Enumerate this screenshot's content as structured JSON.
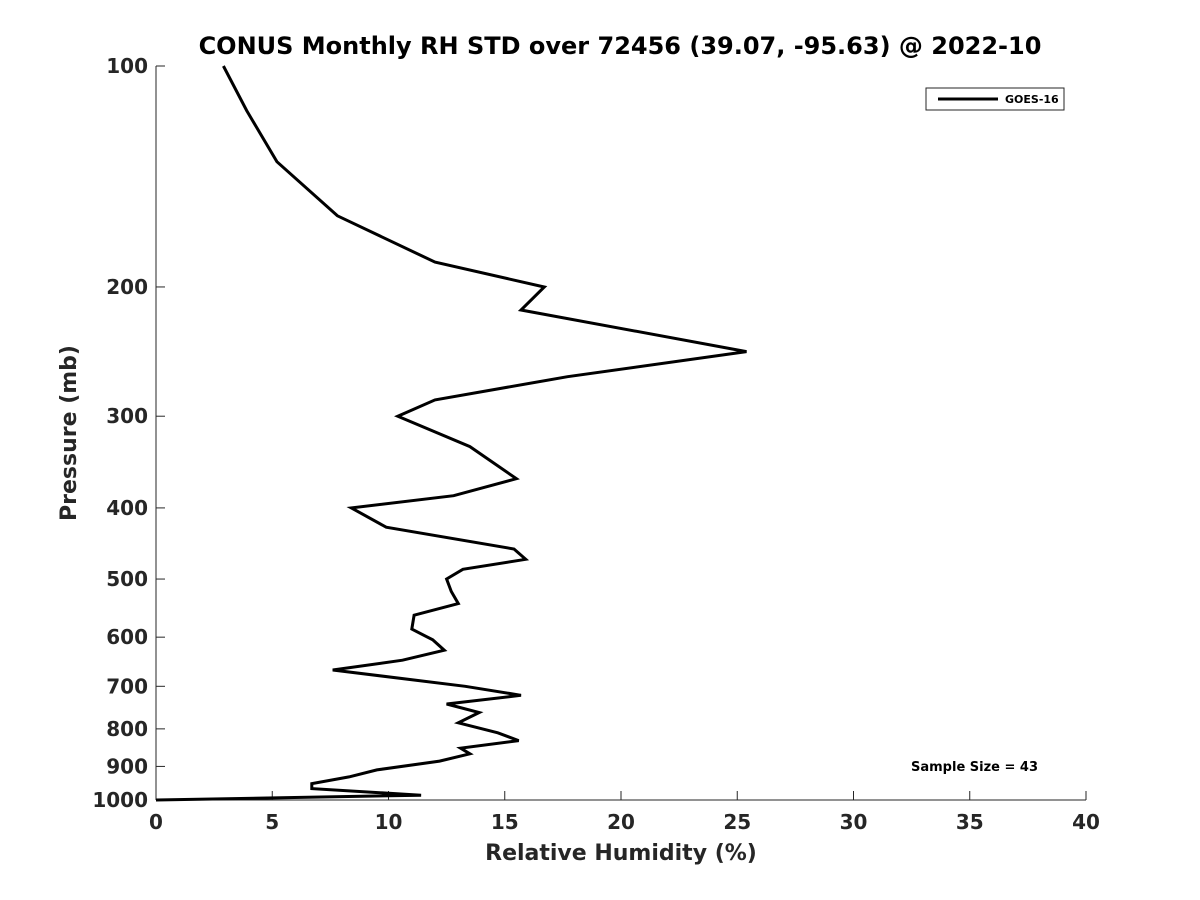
{
  "chart_data": {
    "type": "line",
    "title": "CONUS Monthly RH STD over 72456 (39.07, -95.63) @ 2022-10",
    "xlabel": "Relative Humidity (%)",
    "ylabel": "Pressure (mb)",
    "xlim": [
      0,
      40
    ],
    "ylim": [
      100,
      1000
    ],
    "y_scale": "log",
    "y_reversed": true,
    "xticks": [
      0,
      5,
      10,
      15,
      20,
      25,
      30,
      35,
      40
    ],
    "yticks": [
      100,
      200,
      300,
      400,
      500,
      600,
      700,
      800,
      900,
      1000
    ],
    "grid": false,
    "legend_position": "top-right",
    "annotation": "Sample Size = 43",
    "series": [
      {
        "name": "GOES-16",
        "color": "#000000",
        "points": [
          [
            2.9,
            100
          ],
          [
            3.9,
            115
          ],
          [
            5.2,
            135
          ],
          [
            7.8,
            160
          ],
          [
            12.0,
            185
          ],
          [
            16.7,
            200
          ],
          [
            15.7,
            215
          ],
          [
            25.4,
            245
          ],
          [
            17.7,
            265
          ],
          [
            12.0,
            285
          ],
          [
            10.4,
            300
          ],
          [
            13.5,
            330
          ],
          [
            15.5,
            365
          ],
          [
            12.8,
            385
          ],
          [
            8.4,
            400
          ],
          [
            9.9,
            425
          ],
          [
            15.4,
            455
          ],
          [
            15.9,
            470
          ],
          [
            13.2,
            485
          ],
          [
            12.5,
            500
          ],
          [
            12.7,
            520
          ],
          [
            13.0,
            540
          ],
          [
            11.1,
            560
          ],
          [
            11.0,
            585
          ],
          [
            11.9,
            605
          ],
          [
            12.4,
            625
          ],
          [
            10.6,
            645
          ],
          [
            7.6,
            665
          ],
          [
            13.3,
            700
          ],
          [
            15.7,
            720
          ],
          [
            12.5,
            740
          ],
          [
            13.9,
            760
          ],
          [
            13.0,
            785
          ],
          [
            14.7,
            810
          ],
          [
            15.6,
            830
          ],
          [
            13.1,
            850
          ],
          [
            13.5,
            865
          ],
          [
            12.2,
            885
          ],
          [
            9.5,
            910
          ],
          [
            8.3,
            930
          ],
          [
            6.7,
            950
          ],
          [
            6.7,
            965
          ],
          [
            11.4,
            985
          ],
          [
            0.0,
            1000
          ]
        ]
      }
    ]
  }
}
